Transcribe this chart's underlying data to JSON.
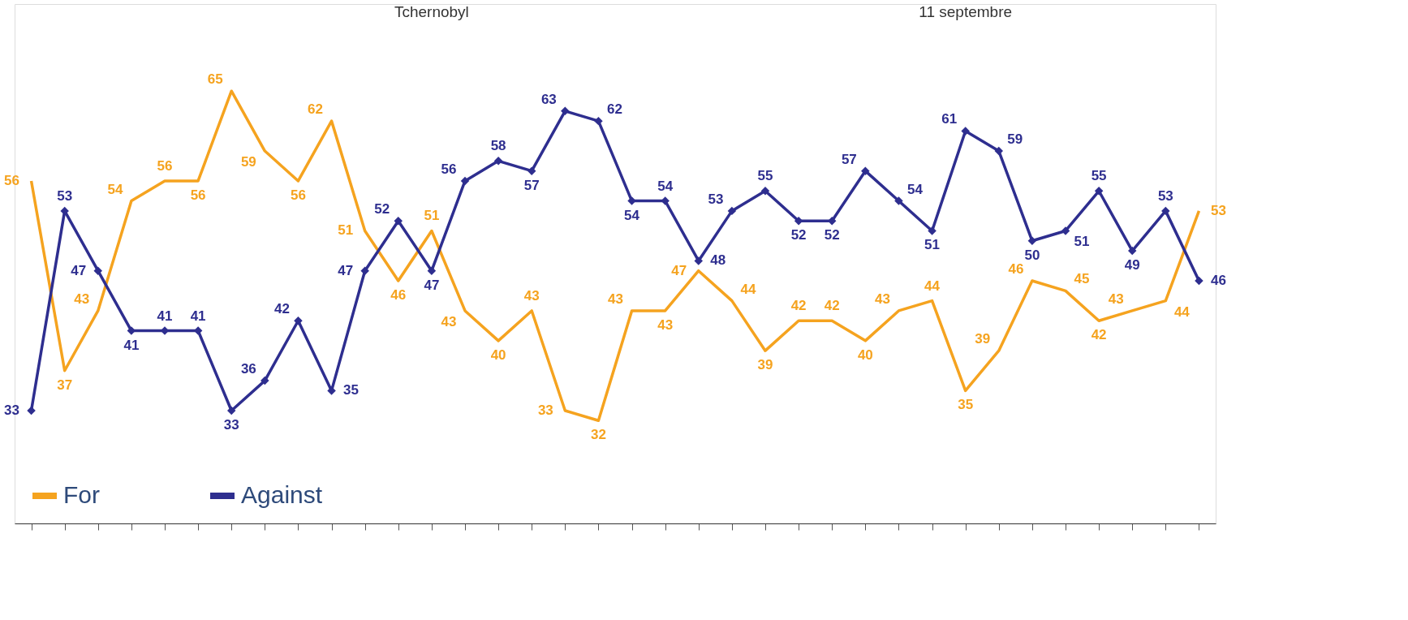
{
  "chart_data": {
    "type": "line",
    "categories": [
      null,
      null,
      null,
      null,
      null,
      null,
      null,
      null,
      null,
      null,
      null,
      null,
      null,
      null,
      null,
      null,
      null,
      null,
      null,
      null,
      null,
      null,
      null,
      null,
      null,
      null,
      null,
      null,
      null,
      null,
      null,
      null,
      null,
      null,
      null,
      null
    ],
    "series": [
      {
        "name": "For",
        "color": "#f5a31f",
        "marker": "none",
        "values": [
          56,
          37,
          43,
          54,
          56,
          56,
          65,
          59,
          56,
          62,
          51,
          46,
          51,
          43,
          40,
          43,
          33,
          32,
          43,
          43,
          47,
          44,
          39,
          42,
          42,
          40,
          43,
          44,
          35,
          39,
          46,
          45,
          42,
          43,
          44,
          53
        ]
      },
      {
        "name": "Against",
        "color": "#2e2e8f",
        "marker": "diamond",
        "values": [
          33,
          53,
          47,
          41,
          41,
          41,
          33,
          36,
          42,
          35,
          47,
          52,
          47,
          56,
          58,
          57,
          63,
          62,
          54,
          54,
          48,
          53,
          55,
          52,
          52,
          57,
          54,
          51,
          61,
          59,
          50,
          51,
          55,
          49,
          53,
          46
        ]
      }
    ],
    "data_labels": true,
    "tick_labels": false,
    "grid": false,
    "legend": "bottom left",
    "line_style": "solid",
    "annotations": [
      "Tchernobyl",
      "11 septembre"
    ]
  }
}
